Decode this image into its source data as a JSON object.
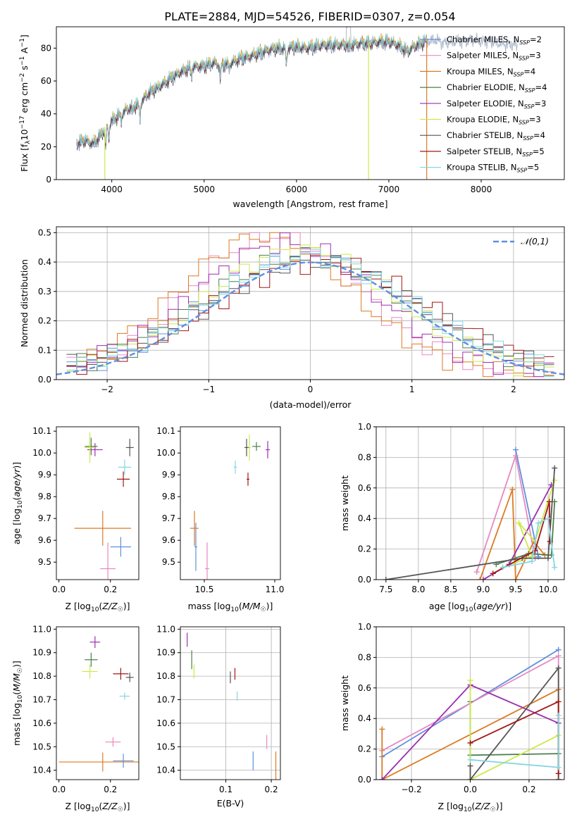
{
  "page_title": "PLATE=2884, MJD=54526, FIBERID=0307, z=0.054",
  "colors": {
    "c1": "#5f8fdf",
    "c2": "#e889c0",
    "c3": "#dd7a22",
    "c4": "#4f7f4f",
    "c5": "#9b2fb0",
    "c6": "#cce84a",
    "c7": "#555555",
    "c8": "#a01818",
    "c9": "#85d7e3"
  },
  "chart_data": [
    {
      "type": "line",
      "name": "spectrum",
      "xlabel": "wavelength [Angstrom, rest frame]",
      "ylabel": "Flux [f",
      "xlim": [
        3400,
        8900
      ],
      "ylim": [
        0,
        93
      ],
      "xticks": [
        4000,
        5000,
        6000,
        7000,
        8000
      ],
      "yticks": [
        0,
        20,
        40,
        60,
        80
      ],
      "legend_position": "upper right",
      "series": [
        {
          "name": "Chabrier MILES, N",
          "sub": "SSP",
          "count": "=2",
          "color": "c1"
        },
        {
          "name": "Salpeter MILES, N",
          "sub": "SSP",
          "count": "=3",
          "color": "c2"
        },
        {
          "name": "Kroupa MILES, N",
          "sub": "SSP",
          "count": "=4",
          "color": "c3"
        },
        {
          "name": "Chabrier ELODIE, N",
          "sub": "SSP",
          "count": "=4",
          "color": "c4"
        },
        {
          "name": "Salpeter ELODIE, N",
          "sub": "SSP",
          "count": "=3",
          "color": "c5"
        },
        {
          "name": "Kroupa ELODIE, N",
          "sub": "SSP",
          "count": "=3",
          "color": "c6"
        },
        {
          "name": "Chabrier STELIB, N",
          "sub": "SSP",
          "count": "=4",
          "color": "c7"
        },
        {
          "name": "Salpeter STELIB, N",
          "sub": "SSP",
          "count": "=5",
          "color": "c8"
        },
        {
          "name": "Kroupa STELIB, N",
          "sub": "SSP",
          "count": "=5",
          "color": "c9"
        }
      ],
      "continuum": [
        [
          3620,
          22
        ],
        [
          3700,
          24
        ],
        [
          3800,
          22
        ],
        [
          3880,
          27
        ],
        [
          3950,
          33
        ],
        [
          4000,
          36
        ],
        [
          4100,
          40
        ],
        [
          4200,
          44
        ],
        [
          4300,
          46
        ],
        [
          4400,
          53
        ],
        [
          4500,
          56
        ],
        [
          4600,
          60
        ],
        [
          4700,
          64
        ],
        [
          4800,
          67
        ],
        [
          4900,
          69
        ],
        [
          5000,
          69
        ],
        [
          5100,
          71
        ],
        [
          5200,
          70
        ],
        [
          5300,
          71
        ],
        [
          5400,
          74
        ],
        [
          5500,
          75
        ],
        [
          5600,
          77
        ],
        [
          5700,
          79
        ],
        [
          5800,
          80
        ],
        [
          5900,
          80
        ],
        [
          6000,
          81
        ],
        [
          6100,
          80
        ],
        [
          6200,
          81
        ],
        [
          6300,
          82
        ],
        [
          6400,
          82
        ],
        [
          6500,
          82
        ],
        [
          6600,
          82
        ],
        [
          6700,
          83
        ],
        [
          6800,
          83
        ],
        [
          6900,
          84
        ],
        [
          7000,
          84
        ],
        [
          7100,
          82
        ],
        [
          7200,
          78
        ],
        [
          7300,
          82
        ],
        [
          7400,
          84
        ],
        [
          7500,
          85
        ],
        [
          7600,
          83
        ],
        [
          7700,
          84
        ],
        [
          7800,
          84
        ],
        [
          7900,
          85
        ],
        [
          8000,
          84
        ],
        [
          8100,
          84
        ],
        [
          8200,
          83
        ],
        [
          8300,
          82
        ],
        [
          8400,
          82
        ]
      ],
      "absorption": [
        [
          3933,
          12
        ],
        [
          3968,
          9
        ],
        [
          4102,
          4
        ],
        [
          4227,
          3
        ],
        [
          4305,
          9
        ],
        [
          4861,
          5
        ],
        [
          5175,
          9
        ],
        [
          5270,
          3
        ],
        [
          5890,
          10
        ],
        [
          6563,
          2
        ]
      ],
      "spikes": [
        [
          3925,
          "c6"
        ],
        [
          6780,
          "c6"
        ],
        [
          7410,
          "c3"
        ]
      ]
    },
    {
      "type": "histogram",
      "name": "residuals",
      "xlabel": "(data-model)/error",
      "ylabel": "Normed distribution",
      "xlim": [
        -2.5,
        2.5
      ],
      "ylim": [
        0,
        0.52
      ],
      "xticks": [
        -2,
        -1,
        0,
        1,
        2
      ],
      "yticks": [
        0.0,
        0.1,
        0.2,
        0.3,
        0.4,
        0.5
      ],
      "grid": true,
      "legend": "𝒩(0,1)",
      "legend_position": "upper right",
      "bin_width": 0.1,
      "centers": [
        -2.35,
        -2.25,
        -2.15,
        -2.05,
        -1.95,
        -1.85,
        -1.75,
        -1.65,
        -1.55,
        -1.45,
        -1.35,
        -1.25,
        -1.15,
        -1.05,
        -0.95,
        -0.85,
        -0.75,
        -0.65,
        -0.55,
        -0.45,
        -0.35,
        -0.25,
        -0.15,
        -0.05,
        0.05,
        0.15,
        0.25,
        0.35,
        0.45,
        0.55,
        0.65,
        0.75,
        0.85,
        0.95,
        1.05,
        1.15,
        1.25,
        1.35,
        1.45,
        1.55,
        1.65,
        1.75,
        1.85,
        1.95,
        2.05,
        2.15,
        2.25,
        2.35
      ]
    },
    {
      "type": "scatter",
      "name": "age-metallicity",
      "xlabel": "Z [log",
      "ylabel": "age  [log",
      "xlim": [
        -0.01,
        0.31
      ],
      "ylim": [
        9.42,
        10.12
      ],
      "xticks": [
        0.0,
        0.2
      ],
      "yticks": [
        9.5,
        9.6,
        9.7,
        9.8,
        9.9,
        10.0,
        10.1
      ],
      "points": [
        {
          "x": 0.24,
          "y": 9.57,
          "xe": 0.04,
          "ye": 0.045,
          "color": "c1"
        },
        {
          "x": 0.19,
          "y": 9.47,
          "xe": 0.03,
          "ye": 0.12,
          "color": "c2"
        },
        {
          "x": 0.17,
          "y": 9.655,
          "xe": 0.11,
          "ye": 0.08,
          "color": "c3"
        },
        {
          "x": 0.125,
          "y": 10.03,
          "xe": 0.025,
          "ye": 0.04,
          "color": "c4"
        },
        {
          "x": 0.14,
          "y": 10.015,
          "xe": 0.03,
          "ye": 0.03,
          "color": "c5"
        },
        {
          "x": 0.12,
          "y": 10.025,
          "xe": 0.02,
          "ye": 0.07,
          "color": "c6"
        },
        {
          "x": 0.275,
          "y": 10.025,
          "xe": 0.015,
          "ye": 0.04,
          "color": "c7"
        },
        {
          "x": 0.25,
          "y": 9.88,
          "xe": 0.025,
          "ye": 0.035,
          "color": "c8"
        },
        {
          "x": 0.255,
          "y": 9.935,
          "xe": 0.025,
          "ye": 0.035,
          "color": "c9"
        }
      ]
    },
    {
      "type": "scatter",
      "name": "age-mass",
      "xlabel": "mass [log",
      "ylabel": "",
      "xlim": [
        10.33,
        11.04
      ],
      "ylim": [
        9.42,
        10.12
      ],
      "xticks": [
        10.5,
        11.0
      ],
      "yticks": [
        9.5,
        9.6,
        9.7,
        9.8,
        9.9,
        10.0,
        10.1
      ],
      "points": [
        {
          "x": 10.44,
          "y": 9.57,
          "xe": 0.01,
          "ye": 0.11,
          "color": "c1"
        },
        {
          "x": 10.52,
          "y": 9.47,
          "xe": 0.015,
          "ye": 0.12,
          "color": "c2"
        },
        {
          "x": 10.43,
          "y": 9.655,
          "xe": 0.03,
          "ye": 0.08,
          "color": "c3"
        },
        {
          "x": 10.87,
          "y": 10.03,
          "xe": 0.03,
          "ye": 0.02,
          "color": "c4"
        },
        {
          "x": 10.95,
          "y": 10.015,
          "xe": 0.015,
          "ye": 0.04,
          "color": "c5"
        },
        {
          "x": 10.82,
          "y": 10.025,
          "xe": 0.01,
          "ye": 0.06,
          "color": "c6"
        },
        {
          "x": 10.8,
          "y": 10.025,
          "xe": 0.015,
          "ye": 0.04,
          "color": "c7"
        },
        {
          "x": 10.81,
          "y": 9.88,
          "xe": 0.01,
          "ye": 0.03,
          "color": "c8"
        },
        {
          "x": 10.72,
          "y": 9.935,
          "xe": 0.01,
          "ye": 0.03,
          "color": "c9"
        }
      ]
    },
    {
      "type": "line",
      "name": "mass-weight-age",
      "xlabel": "age  [log",
      "ylabel": "mass weight",
      "xlim": [
        7.35,
        10.25
      ],
      "ylim": [
        0,
        1
      ],
      "xticks": [
        7.5,
        8.0,
        8.5,
        9.0,
        9.5,
        10.0
      ],
      "yticks": [
        0.0,
        0.2,
        0.4,
        0.6,
        0.8,
        1.0
      ],
      "grid": true,
      "series": [
        {
          "color": "c1",
          "points": [
            [
              9.5,
              0.85
            ],
            [
              9.85,
              0.15
            ]
          ]
        },
        {
          "color": "c2",
          "points": [
            [
              8.9,
              0.05
            ],
            [
              9.5,
              0.81
            ],
            [
              9.8,
              0.14
            ]
          ]
        },
        {
          "color": "c3",
          "points": [
            [
              8.95,
              0.0
            ],
            [
              9.45,
              0.59
            ],
            [
              9.5,
              0.0
            ],
            [
              9.78,
              0.25
            ],
            [
              9.95,
              0.16
            ]
          ]
        },
        {
          "color": "c4",
          "points": [
            [
              9.2,
              0.1
            ],
            [
              9.7,
              0.17
            ],
            [
              10.05,
              0.16
            ],
            [
              10.1,
              0.51
            ]
          ]
        },
        {
          "color": "c5",
          "points": [
            [
              9.0,
              0.0
            ],
            [
              9.4,
              0.1
            ],
            [
              10.05,
              0.62
            ]
          ]
        },
        {
          "color": "c6",
          "points": [
            [
              9.3,
              0.08
            ],
            [
              9.75,
              0.15
            ],
            [
              9.55,
              0.37
            ],
            [
              9.8,
              0.25
            ],
            [
              10.1,
              0.65
            ]
          ]
        },
        {
          "color": "c7",
          "points": [
            [
              7.5,
              0.0
            ],
            [
              9.6,
              0.14
            ],
            [
              10.0,
              0.14
            ],
            [
              10.1,
              0.73
            ]
          ]
        },
        {
          "color": "c8",
          "points": [
            [
              9.15,
              0.04
            ],
            [
              9.8,
              0.19
            ],
            [
              10.02,
              0.51
            ],
            [
              10.03,
              0.25
            ]
          ]
        },
        {
          "color": "c9",
          "points": [
            [
              9.3,
              0.08
            ],
            [
              9.75,
              0.12
            ],
            [
              9.85,
              0.37
            ],
            [
              10.0,
              0.4
            ],
            [
              10.1,
              0.08
            ]
          ]
        }
      ]
    },
    {
      "type": "scatter",
      "name": "mass-metallicity",
      "xlabel": "Z [log",
      "ylabel": "mass [log",
      "xlim": [
        -0.01,
        0.31
      ],
      "ylim": [
        10.36,
        11.01
      ],
      "xticks": [
        0.0,
        0.2
      ],
      "yticks": [
        10.4,
        10.5,
        10.6,
        10.7,
        10.8,
        10.9,
        11.0
      ],
      "points": [
        {
          "x": 0.25,
          "y": 10.44,
          "xe": 0.04,
          "ye": 0.03,
          "color": "c1"
        },
        {
          "x": 0.21,
          "y": 10.52,
          "xe": 0.03,
          "ye": 0.02,
          "color": "c2"
        },
        {
          "x": 0.17,
          "y": 10.435,
          "xe": 0.17,
          "ye": 0.04,
          "color": "c3"
        },
        {
          "x": 0.125,
          "y": 10.87,
          "xe": 0.025,
          "ye": 0.03,
          "color": "c4"
        },
        {
          "x": 0.14,
          "y": 10.945,
          "xe": 0.02,
          "ye": 0.025,
          "color": "c5"
        },
        {
          "x": 0.12,
          "y": 10.82,
          "xe": 0.03,
          "ye": 0.03,
          "color": "c6"
        },
        {
          "x": 0.275,
          "y": 10.795,
          "xe": 0.015,
          "ye": 0.02,
          "color": "c7"
        },
        {
          "x": 0.24,
          "y": 10.81,
          "xe": 0.03,
          "ye": 0.025,
          "color": "c8"
        },
        {
          "x": 0.255,
          "y": 10.715,
          "xe": 0.02,
          "ye": 0.015,
          "color": "c9"
        }
      ]
    },
    {
      "type": "scatter",
      "name": "mass-extinction",
      "xlabel": "E(B-V)",
      "ylabel": "",
      "xlim": [
        0.0,
        0.22
      ],
      "ylim": [
        10.36,
        11.01
      ],
      "xticks": [
        0.1,
        0.2
      ],
      "yticks": [
        10.4,
        10.5,
        10.6,
        10.7,
        10.8,
        10.9,
        11.0
      ],
      "grid": true,
      "points": [
        {
          "x": 0.16,
          "y": 10.44,
          "xe": 0,
          "ye": 0.04,
          "color": "c1"
        },
        {
          "x": 0.19,
          "y": 10.52,
          "xe": 0,
          "ye": 0.03,
          "color": "c2"
        },
        {
          "x": 0.21,
          "y": 10.42,
          "xe": 0,
          "ye": 0.06,
          "color": "c3"
        },
        {
          "x": 0.025,
          "y": 10.87,
          "xe": 0,
          "ye": 0.04,
          "color": "c4"
        },
        {
          "x": 0.015,
          "y": 10.955,
          "xe": 0,
          "ye": 0.03,
          "color": "c5"
        },
        {
          "x": 0.03,
          "y": 10.82,
          "xe": 0,
          "ye": 0.03,
          "color": "c6"
        },
        {
          "x": 0.11,
          "y": 10.795,
          "xe": 0,
          "ye": 0.025,
          "color": "c7"
        },
        {
          "x": 0.12,
          "y": 10.81,
          "xe": 0,
          "ye": 0.025,
          "color": "c8"
        },
        {
          "x": 0.125,
          "y": 10.715,
          "xe": 0,
          "ye": 0.02,
          "color": "c9"
        }
      ]
    },
    {
      "type": "line",
      "name": "mass-weight-metallicity",
      "xlabel": "Z [log",
      "ylabel": "mass weight",
      "xlim": [
        -0.32,
        0.32
      ],
      "ylim": [
        0,
        1
      ],
      "xticks": [
        -0.2,
        0.0,
        0.2
      ],
      "yticks": [
        0.0,
        0.2,
        0.4,
        0.6,
        0.8,
        1.0
      ],
      "grid": true,
      "series": [
        {
          "color": "c1",
          "points": [
            [
              -0.3,
              0.15
            ],
            [
              0.3,
              0.85
            ]
          ]
        },
        {
          "color": "c2",
          "points": [
            [
              -0.3,
              0.19
            ],
            [
              0.3,
              0.81
            ],
            [
              0.3,
              0.0
            ]
          ]
        },
        {
          "color": "c3",
          "points": [
            [
              -0.3,
              0.33
            ],
            [
              -0.3,
              0.0
            ],
            [
              0.3,
              0.59
            ],
            [
              0.3,
              0.0
            ]
          ]
        },
        {
          "color": "c4",
          "points": [
            [
              0.0,
              0.51
            ],
            [
              0.0,
              0.16
            ],
            [
              0.3,
              0.17
            ]
          ]
        },
        {
          "color": "c5",
          "points": [
            [
              -0.3,
              0.0
            ],
            [
              0.0,
              0.62
            ],
            [
              0.3,
              0.37
            ]
          ]
        },
        {
          "color": "c6",
          "points": [
            [
              0.0,
              0.65
            ],
            [
              0.0,
              0.0
            ],
            [
              0.3,
              0.29
            ],
            [
              0.3,
              0.0
            ]
          ]
        },
        {
          "color": "c7",
          "points": [
            [
              0.0,
              0.09
            ],
            [
              0.0,
              0.0
            ],
            [
              0.3,
              0.73
            ],
            [
              0.3,
              0.0
            ]
          ]
        },
        {
          "color": "c8",
          "points": [
            [
              0.0,
              0.24
            ],
            [
              0.3,
              0.51
            ],
            [
              0.3,
              0.04
            ]
          ]
        },
        {
          "color": "c9",
          "points": [
            [
              0.0,
              0.13
            ],
            [
              0.3,
              0.08
            ],
            [
              0.3,
              0.42
            ]
          ]
        }
      ]
    }
  ]
}
